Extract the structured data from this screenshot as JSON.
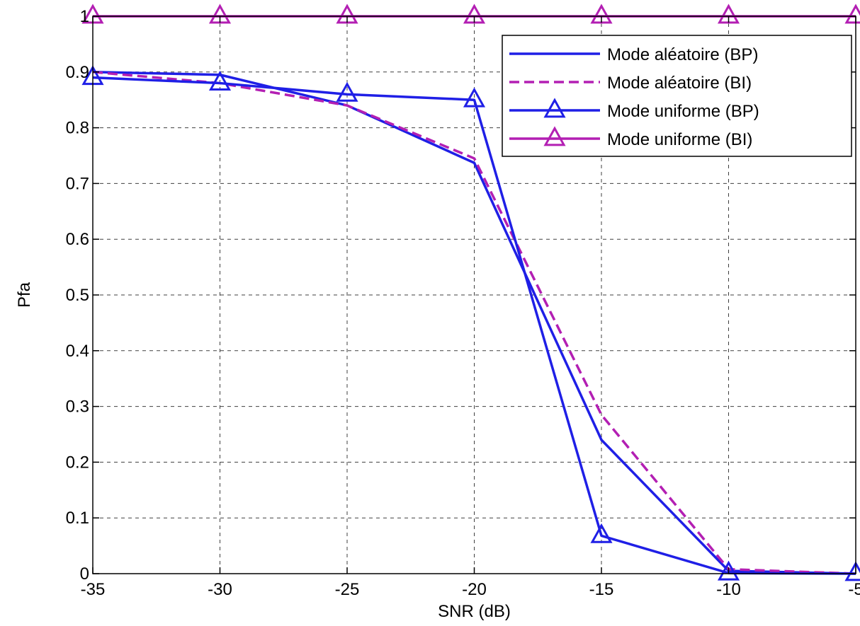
{
  "chart_data": {
    "type": "line",
    "xlabel": "SNR (dB)",
    "ylabel": "Pfa",
    "xlim": [
      -35,
      -5
    ],
    "ylim": [
      0,
      1
    ],
    "xticks": [
      -35,
      -30,
      -25,
      -20,
      -15,
      -10,
      -5
    ],
    "xtick_labels": [
      "-35",
      "-30",
      "-25",
      "-20",
      "-15",
      "-10",
      "-5"
    ],
    "yticks": [
      0,
      0.1,
      0.2,
      0.3,
      0.4,
      0.5,
      0.6,
      0.7,
      0.8,
      0.9,
      1
    ],
    "ytick_labels": [
      "0",
      "0.1",
      "0.2",
      "0.3",
      "0.4",
      "0.5",
      "0.6",
      "0.7",
      "0.8",
      "0.9",
      "1"
    ],
    "grid": true,
    "legend_position": "top-right",
    "x": [
      -35,
      -30,
      -25,
      -20,
      -15,
      -10,
      -5
    ],
    "series": [
      {
        "name": "Mode aléatoire (BP)",
        "values": [
          0.9,
          0.895,
          0.84,
          0.737,
          0.24,
          0.005,
          0.0
        ],
        "color": "#1f1fe6",
        "style": "solid",
        "marker": "none"
      },
      {
        "name": "Mode aléatoire (BI)",
        "values": [
          0.9,
          0.88,
          0.84,
          0.745,
          0.285,
          0.008,
          0.0
        ],
        "color": "#b31fb3",
        "style": "dashed",
        "marker": "none"
      },
      {
        "name": "Mode uniforme (BP)",
        "values": [
          0.89,
          0.88,
          0.86,
          0.85,
          0.068,
          0.001,
          0.0
        ],
        "color": "#1f1fe6",
        "style": "solid",
        "marker": "triangle"
      },
      {
        "name": "Mode uniforme (BI)",
        "values": [
          1.0,
          1.0,
          1.0,
          1.0,
          1.0,
          1.0,
          1.0
        ],
        "color": "#b31fb3",
        "style": "solid",
        "marker": "triangle"
      }
    ]
  }
}
